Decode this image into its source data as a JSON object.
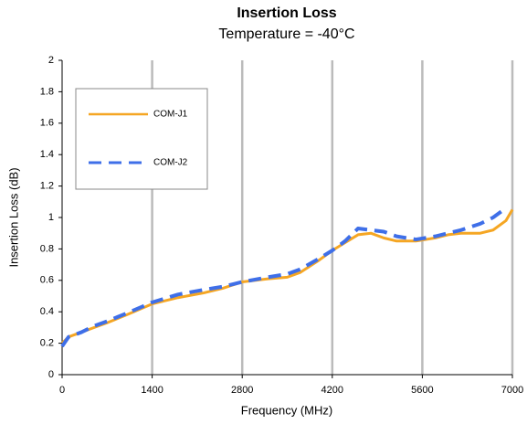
{
  "chart_data": {
    "type": "line",
    "title": "Insertion Loss",
    "subtitle": "Temperature = -40°C",
    "xlabel": "Frequency (MHz)",
    "ylabel": "Insertion Loss (dB)",
    "x": [
      0,
      100,
      300,
      500,
      700,
      1000,
      1400,
      1800,
      2200,
      2500,
      2800,
      3200,
      3500,
      3700,
      4000,
      4200,
      4400,
      4600,
      4800,
      5000,
      5200,
      5500,
      5800,
      6000,
      6200,
      6500,
      6700,
      6900,
      7000
    ],
    "series": [
      {
        "name": "COM-J1",
        "color": "#f5a623",
        "dash": false,
        "values": [
          0.2,
          0.24,
          0.27,
          0.3,
          0.33,
          0.38,
          0.45,
          0.49,
          0.52,
          0.55,
          0.59,
          0.61,
          0.62,
          0.65,
          0.73,
          0.79,
          0.84,
          0.89,
          0.9,
          0.87,
          0.85,
          0.85,
          0.87,
          0.89,
          0.9,
          0.9,
          0.92,
          0.98,
          1.05
        ]
      },
      {
        "name": "COM-J2",
        "color": "#3f6fe8",
        "dash": true,
        "values": [
          0.18,
          0.24,
          0.27,
          0.31,
          0.34,
          0.39,
          0.46,
          0.51,
          0.54,
          0.56,
          0.59,
          0.62,
          0.64,
          0.67,
          0.74,
          0.79,
          0.85,
          0.93,
          0.92,
          0.91,
          0.88,
          0.86,
          0.88,
          0.9,
          0.92,
          0.96,
          1.0,
          1.06,
          null
        ]
      }
    ],
    "xlim": [
      0,
      7000
    ],
    "xticks": [
      0,
      1400,
      2800,
      4200,
      5600,
      7000
    ],
    "ylim": [
      0,
      2
    ],
    "yticks": [
      0,
      0.2,
      0.4,
      0.6,
      0.8,
      1,
      1.2,
      1.4,
      1.6,
      1.8,
      2
    ],
    "grid": "x"
  }
}
